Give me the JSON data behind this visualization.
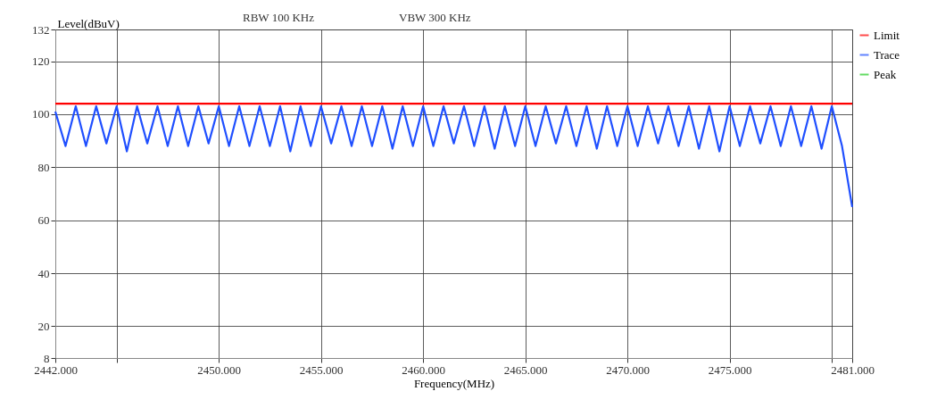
{
  "chart_data": {
    "type": "line",
    "xlabel": "Frequency(MHz)",
    "ylabel": "Level(dBuV)",
    "annotations": [
      "RBW  100 KHz",
      "VBW  300 KHz"
    ],
    "xlim": [
      2442,
      2481
    ],
    "xticks": [
      {
        "value": 2442,
        "label": "2442.000"
      },
      {
        "value": 2445,
        "label": null
      },
      {
        "value": 2450,
        "label": "2450.000"
      },
      {
        "value": 2455,
        "label": "2455.000"
      },
      {
        "value": 2460,
        "label": "2460.000"
      },
      {
        "value": 2465,
        "label": "2465.000"
      },
      {
        "value": 2470,
        "label": "2470.000"
      },
      {
        "value": 2475,
        "label": "2475.000"
      },
      {
        "value": 2480,
        "label": null
      },
      {
        "value": 2481,
        "label": "2481.000"
      }
    ],
    "ylim": [
      8,
      132
    ],
    "yticks": [
      8,
      20,
      40,
      60,
      80,
      100,
      120,
      132
    ],
    "grid": true,
    "legend": "top right",
    "series": [
      {
        "name": "Limit",
        "color": "#ff0000",
        "x": [
          2442,
          2481
        ],
        "values": [
          104,
          104
        ]
      },
      {
        "name": "Trace",
        "color": "#1f4fff",
        "x": [
          2442,
          2442.5,
          2443,
          2443.5,
          2444,
          2444.5,
          2445,
          2445.5,
          2446,
          2446.5,
          2447,
          2447.5,
          2448,
          2448.5,
          2449,
          2449.5,
          2450,
          2450.5,
          2451,
          2451.5,
          2452,
          2452.5,
          2453,
          2453.5,
          2454,
          2454.5,
          2455,
          2455.5,
          2456,
          2456.5,
          2457,
          2457.5,
          2458,
          2458.5,
          2459,
          2459.5,
          2460,
          2460.5,
          2461,
          2461.5,
          2462,
          2462.5,
          2463,
          2463.5,
          2464,
          2464.5,
          2465,
          2465.5,
          2466,
          2466.5,
          2467,
          2467.5,
          2468,
          2468.5,
          2469,
          2469.5,
          2470,
          2470.5,
          2471,
          2471.5,
          2472,
          2472.5,
          2473,
          2473.5,
          2474,
          2474.5,
          2475,
          2475.5,
          2476,
          2476.5,
          2477,
          2477.5,
          2478,
          2478.5,
          2479,
          2479.5,
          2480,
          2480.5,
          2481
        ],
        "values": [
          101,
          88,
          103,
          88,
          103,
          89,
          103,
          86,
          103,
          89,
          103,
          88,
          103,
          88,
          103,
          89,
          103,
          88,
          103,
          88,
          103,
          88,
          103,
          86,
          103,
          88,
          103,
          89,
          103,
          88,
          103,
          88,
          103,
          87,
          103,
          88,
          103,
          88,
          103,
          89,
          103,
          88,
          103,
          87,
          103,
          88,
          103,
          88,
          103,
          89,
          103,
          88,
          103,
          87,
          103,
          88,
          103,
          88,
          103,
          89,
          103,
          88,
          103,
          87,
          103,
          86,
          103,
          88,
          103,
          89,
          103,
          88,
          103,
          88,
          103,
          87,
          103,
          88,
          65
        ]
      },
      {
        "name": "Peak",
        "color": "#22cc22",
        "type": "scatter"
      }
    ]
  }
}
